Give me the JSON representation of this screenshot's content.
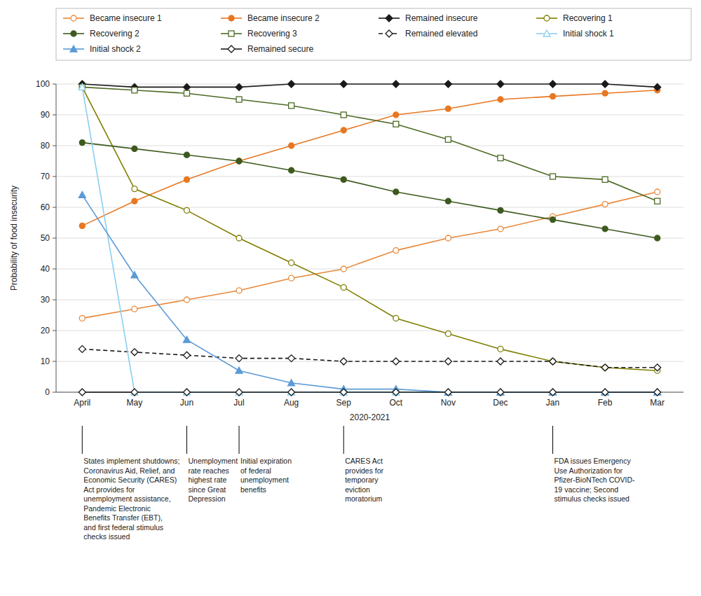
{
  "chart_data": {
    "type": "line",
    "categories": [
      "April",
      "May",
      "Jun",
      "Jul",
      "Aug",
      "Sep",
      "Oct",
      "Nov",
      "Dec",
      "Jan",
      "Feb",
      "Mar"
    ],
    "xlabel": "2020-2021",
    "ylabel": "Probability of food insecurity",
    "ylim": [
      0,
      100
    ],
    "yticks": [
      0,
      10,
      20,
      30,
      40,
      50,
      60,
      70,
      80,
      90,
      100
    ],
    "grid": "y",
    "legend": "top",
    "series": [
      {
        "name": "Became insecure 1",
        "color": "#E8883A",
        "marker": "circle-open",
        "line_style": "solid",
        "values": [
          24,
          27,
          30,
          33,
          37,
          40,
          46,
          50,
          53,
          57,
          61,
          65
        ]
      },
      {
        "name": "Became insecure 2",
        "color": "#E87722",
        "marker": "circle",
        "line_style": "solid",
        "values": [
          54,
          62,
          69,
          75,
          80,
          85,
          90,
          92,
          95,
          96,
          97,
          98
        ]
      },
      {
        "name": "Remained insecure",
        "color": "#1a1a1a",
        "marker": "diamond",
        "line_style": "solid",
        "values": [
          100,
          99,
          99,
          99,
          100,
          100,
          100,
          100,
          100,
          100,
          100,
          99
        ]
      },
      {
        "name": "Recovering 1",
        "color": "#7f7f00",
        "marker": "circle-open",
        "line_style": "solid",
        "values": [
          99,
          66,
          59,
          50,
          42,
          34,
          24,
          19,
          14,
          10,
          8,
          7
        ]
      },
      {
        "name": "Recovering 2",
        "color": "#3d5a1e",
        "marker": "circle",
        "line_style": "solid",
        "values": [
          81,
          79,
          77,
          75,
          72,
          69,
          65,
          62,
          59,
          56,
          53,
          50
        ]
      },
      {
        "name": "Recovering 3",
        "color": "#4d6b25",
        "marker": "square-open",
        "line_style": "solid",
        "values": [
          99,
          98,
          97,
          95,
          93,
          90,
          87,
          82,
          76,
          70,
          69,
          62
        ]
      },
      {
        "name": "Remained elevated",
        "color": "#1a1a1a",
        "marker": "diamond-open",
        "line_style": "dashed",
        "values": [
          14,
          13,
          12,
          11,
          11,
          10,
          10,
          10,
          10,
          10,
          8,
          8
        ]
      },
      {
        "name": "Initial shock 1",
        "color": "#89CFF0",
        "marker": "triangle-open",
        "line_style": "solid",
        "values": [
          99,
          0,
          0,
          0,
          0,
          0,
          0,
          0,
          0,
          0,
          0,
          0
        ]
      },
      {
        "name": "Initial shock 2",
        "color": "#5b9bd5",
        "marker": "triangle",
        "line_style": "solid",
        "values": [
          64,
          38,
          17,
          7,
          3,
          1,
          1,
          0,
          0,
          0,
          0,
          0
        ]
      },
      {
        "name": "Remained secure",
        "color": "#1a1a1a",
        "marker": "diamond-open",
        "line_style": "solid",
        "values": [
          0,
          0,
          0,
          0,
          0,
          0,
          0,
          0,
          0,
          0,
          0,
          0
        ]
      }
    ],
    "annotations": [
      {
        "category": "April",
        "text": "States implement shutdowns;\nCoronavirus Aid, Relief, and\nEconomic Security (CARES)\nAct provides for\nunemployment assistance,\nPandemic Electronic\nBenefits Transfer (EBT),\nand first federal stimulus\nchecks issued"
      },
      {
        "category": "Jun",
        "text": "Unemployment\nrate reaches\nhighest rate\nsince Great\nDepression"
      },
      {
        "category": "Jul",
        "text": "Initial expiration\nof federal\nunemployment\nbenefits"
      },
      {
        "category": "Sep",
        "text": "CARES Act\nprovides for\ntemporary\neviction\nmoratorium"
      },
      {
        "category": "Jan",
        "text": "FDA issues Emergency\nUse Authorization for\nPfizer-BioNTech COVID-\n19 vaccine; Second\nstimulus checks issued"
      }
    ]
  }
}
